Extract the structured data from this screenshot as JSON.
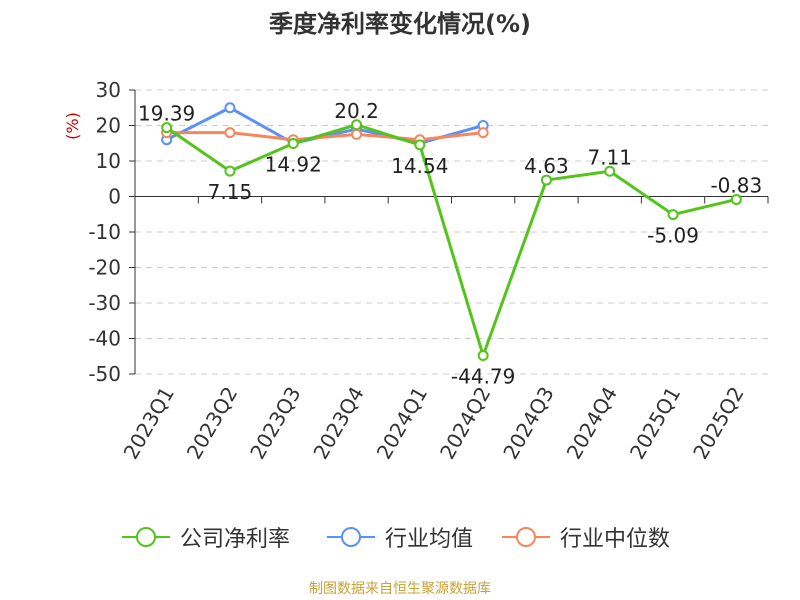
{
  "title": "季度净利率变化情况(%)",
  "footer": "制图数据来自恒生聚源数据库",
  "chart_data": {
    "type": "line",
    "title": "季度净利率变化情况(%)",
    "ylabel": "(%)",
    "ylim": [
      -50,
      30
    ],
    "yticks": [
      30,
      20,
      10,
      0,
      -10,
      -20,
      -30,
      -40,
      -50
    ],
    "grid": true,
    "legend_position": "bottom",
    "categories": [
      "2023Q1",
      "2023Q2",
      "2023Q3",
      "2023Q4",
      "2024Q1",
      "2024Q2",
      "2024Q3",
      "2024Q4",
      "2025Q1",
      "2025Q2"
    ],
    "series": [
      {
        "name": "公司净利率",
        "color": "#52c41a",
        "values": [
          19.39,
          7.15,
          14.92,
          20.2,
          14.54,
          -44.79,
          4.63,
          7.11,
          -5.09,
          -0.83
        ],
        "labels": [
          "19.39",
          "7.15",
          "14.92",
          "20.2",
          "14.54",
          "-44.79",
          "4.63",
          "7.11",
          "-5.09",
          "-0.83"
        ]
      },
      {
        "name": "行业均值",
        "color": "#5b8ff9",
        "values": [
          16,
          25,
          15,
          19,
          15,
          20,
          null,
          null,
          null,
          null
        ]
      },
      {
        "name": "行业中位数",
        "color": "#f6875c",
        "values": [
          18,
          18,
          16,
          17.5,
          16,
          18,
          null,
          null,
          null,
          null
        ]
      }
    ]
  }
}
